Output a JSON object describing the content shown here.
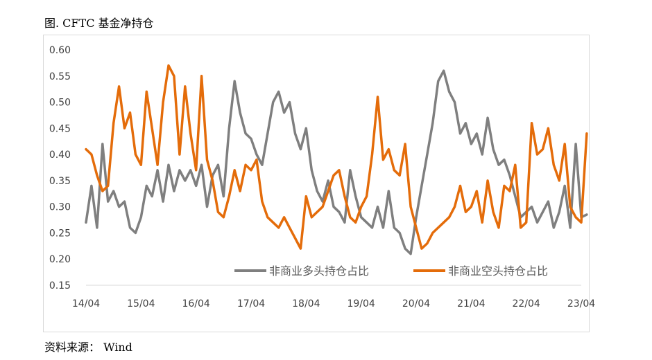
{
  "title": "图. CFTC 基金净持仓",
  "source": "资料来源： Wind",
  "chart_data": {
    "type": "line",
    "title": "图. CFTC 基金净持仓",
    "x_ticks": [
      "14/04",
      "15/04",
      "16/04",
      "17/04",
      "18/04",
      "19/04",
      "20/04",
      "21/04",
      "22/04",
      "23/04"
    ],
    "ylim": [
      0.15,
      0.6
    ],
    "y_ticks": [
      "0.15",
      "0.20",
      "0.25",
      "0.30",
      "0.35",
      "0.40",
      "0.45",
      "0.50",
      "0.55",
      "0.60"
    ],
    "grid": false,
    "legend_position": "bottom-right",
    "series": [
      {
        "name": "非商业多头持仓占比",
        "color": "#7f7f7f",
        "x": [
          0,
          0.1,
          0.2,
          0.3,
          0.4,
          0.5,
          0.6,
          0.7,
          0.8,
          0.9,
          1.0,
          1.1,
          1.2,
          1.3,
          1.4,
          1.5,
          1.6,
          1.7,
          1.8,
          1.9,
          2.0,
          2.1,
          2.2,
          2.3,
          2.4,
          2.5,
          2.6,
          2.7,
          2.8,
          2.9,
          3.0,
          3.1,
          3.2,
          3.3,
          3.4,
          3.5,
          3.6,
          3.7,
          3.8,
          3.9,
          4.0,
          4.1,
          4.2,
          4.3,
          4.4,
          4.5,
          4.6,
          4.7,
          4.8,
          4.9,
          5.0,
          5.1,
          5.2,
          5.3,
          5.4,
          5.5,
          5.6,
          5.7,
          5.8,
          5.9,
          6.0,
          6.1,
          6.2,
          6.3,
          6.4,
          6.5,
          6.6,
          6.7,
          6.8,
          6.9,
          7.0,
          7.1,
          7.2,
          7.3,
          7.4,
          7.5,
          7.6,
          7.7,
          7.8,
          7.9,
          8.0,
          8.1,
          8.2,
          8.3,
          8.4,
          8.5,
          8.6,
          8.7,
          8.8,
          8.9,
          9.0,
          9.1
        ],
        "values": [
          0.27,
          0.34,
          0.26,
          0.42,
          0.31,
          0.33,
          0.3,
          0.31,
          0.26,
          0.25,
          0.28,
          0.34,
          0.32,
          0.37,
          0.31,
          0.38,
          0.33,
          0.37,
          0.35,
          0.37,
          0.34,
          0.38,
          0.3,
          0.36,
          0.38,
          0.32,
          0.45,
          0.54,
          0.48,
          0.44,
          0.43,
          0.4,
          0.38,
          0.44,
          0.5,
          0.52,
          0.48,
          0.5,
          0.44,
          0.41,
          0.45,
          0.37,
          0.33,
          0.31,
          0.35,
          0.3,
          0.29,
          0.27,
          0.37,
          0.32,
          0.28,
          0.27,
          0.26,
          0.3,
          0.26,
          0.33,
          0.26,
          0.25,
          0.22,
          0.21,
          0.28,
          0.34,
          0.4,
          0.46,
          0.54,
          0.56,
          0.52,
          0.5,
          0.44,
          0.46,
          0.42,
          0.44,
          0.4,
          0.47,
          0.41,
          0.38,
          0.39,
          0.36,
          0.32,
          0.28,
          0.29,
          0.3,
          0.27,
          0.29,
          0.31,
          0.26,
          0.29,
          0.34,
          0.26,
          0.42,
          0.28,
          0.285
        ]
      },
      {
        "name": "非商业空头持仓占比",
        "color": "#e46c0a",
        "x": [
          0,
          0.1,
          0.2,
          0.3,
          0.4,
          0.5,
          0.6,
          0.7,
          0.8,
          0.9,
          1.0,
          1.1,
          1.2,
          1.3,
          1.4,
          1.5,
          1.6,
          1.7,
          1.8,
          1.9,
          2.0,
          2.1,
          2.2,
          2.3,
          2.4,
          2.5,
          2.6,
          2.7,
          2.8,
          2.9,
          3.0,
          3.1,
          3.2,
          3.3,
          3.4,
          3.5,
          3.6,
          3.7,
          3.8,
          3.9,
          4.0,
          4.1,
          4.2,
          4.3,
          4.4,
          4.5,
          4.6,
          4.7,
          4.8,
          4.9,
          5.0,
          5.1,
          5.2,
          5.3,
          5.4,
          5.5,
          5.6,
          5.7,
          5.8,
          5.9,
          6.0,
          6.1,
          6.2,
          6.3,
          6.4,
          6.5,
          6.6,
          6.7,
          6.8,
          6.9,
          7.0,
          7.1,
          7.2,
          7.3,
          7.4,
          7.5,
          7.6,
          7.7,
          7.8,
          7.9,
          8.0,
          8.1,
          8.2,
          8.3,
          8.4,
          8.5,
          8.6,
          8.7,
          8.8,
          8.9,
          9.0,
          9.1
        ],
        "values": [
          0.41,
          0.4,
          0.36,
          0.33,
          0.34,
          0.46,
          0.53,
          0.45,
          0.48,
          0.4,
          0.38,
          0.52,
          0.45,
          0.38,
          0.5,
          0.57,
          0.55,
          0.4,
          0.53,
          0.44,
          0.37,
          0.55,
          0.39,
          0.35,
          0.29,
          0.28,
          0.32,
          0.37,
          0.33,
          0.38,
          0.37,
          0.39,
          0.31,
          0.28,
          0.27,
          0.26,
          0.28,
          0.26,
          0.24,
          0.22,
          0.32,
          0.28,
          0.29,
          0.3,
          0.33,
          0.36,
          0.37,
          0.32,
          0.28,
          0.27,
          0.3,
          0.32,
          0.4,
          0.51,
          0.39,
          0.41,
          0.37,
          0.36,
          0.42,
          0.3,
          0.26,
          0.22,
          0.23,
          0.25,
          0.26,
          0.27,
          0.28,
          0.3,
          0.34,
          0.29,
          0.3,
          0.33,
          0.27,
          0.35,
          0.29,
          0.26,
          0.34,
          0.33,
          0.38,
          0.26,
          0.27,
          0.46,
          0.4,
          0.41,
          0.45,
          0.38,
          0.35,
          0.42,
          0.3,
          0.28,
          0.27,
          0.44
        ]
      }
    ]
  }
}
